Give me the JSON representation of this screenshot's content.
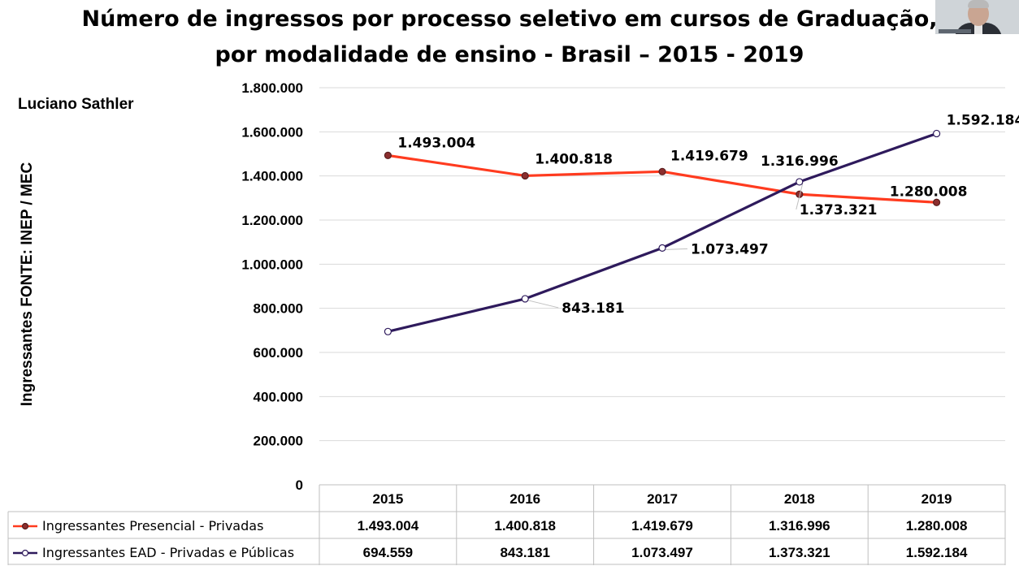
{
  "header": {
    "title_line1": "Número de ingressos por processo seletivo em cursos de Graduação,",
    "title_line2": "por modalidade de ensino - Brasil – 2015 - 2019",
    "author": "Luciano Sathler",
    "yaxis_title": "Ingressantes   FONTE: INEP / MEC"
  },
  "chart_data": {
    "type": "line",
    "categories": [
      "2015",
      "2016",
      "2017",
      "2018",
      "2019"
    ],
    "ylim": [
      0,
      1800000
    ],
    "yticks": [
      "0",
      "200.000",
      "400.000",
      "600.000",
      "800.000",
      "1.000.000",
      "1.200.000",
      "1.400.000",
      "1.600.000",
      "1.800.000"
    ],
    "grid": true,
    "legend": "data-table",
    "series": [
      {
        "name": "Ingressantes Presencial - Privadas",
        "values": [
          1493004,
          1400818,
          1419679,
          1316996,
          1280008
        ],
        "labels": [
          "1.493.004",
          "1.400.818",
          "1.419.679",
          "1.316.996",
          "1.280.008"
        ],
        "color": "#ff3b1f",
        "marker_color": "#8b2e2e"
      },
      {
        "name": "Ingressantes EAD - Privadas e Públicas",
        "values": [
          694559,
          843181,
          1073497,
          1373321,
          1592184
        ],
        "labels": [
          "694.559",
          "843.181",
          "1.073.497",
          "1.373.321",
          "1.592.184"
        ],
        "color": "#2e1a5c",
        "marker_color": "#ffffff"
      }
    ]
  }
}
